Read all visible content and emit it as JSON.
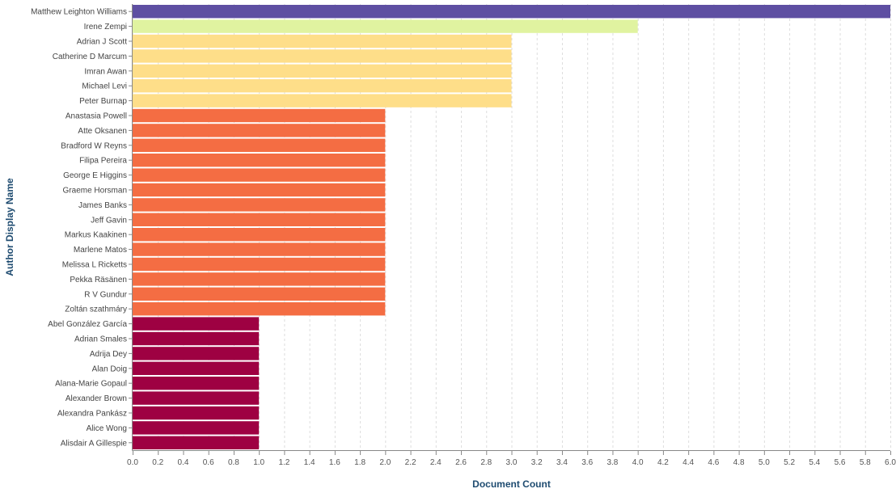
{
  "chart_data": {
    "type": "bar",
    "orientation": "horizontal",
    "xlabel": "Document Count",
    "ylabel": "Author Display Name",
    "xlim": [
      0,
      6
    ],
    "x_ticks": [
      "0.0",
      "0.2",
      "0.4",
      "0.6",
      "0.8",
      "1.0",
      "1.2",
      "1.4",
      "1.6",
      "1.8",
      "2.0",
      "2.2",
      "2.4",
      "2.6",
      "2.8",
      "3.0",
      "3.2",
      "3.4",
      "3.6",
      "3.8",
      "4.0",
      "4.2",
      "4.4",
      "4.6",
      "4.8",
      "5.0",
      "5.2",
      "5.4",
      "5.6",
      "5.8",
      "6.0"
    ],
    "grid": true,
    "categories": [
      "Matthew Leighton Williams",
      "Irene Zempi",
      "Adrian J Scott",
      "Catherine D Marcum",
      "Imran Awan",
      "Michael Levi",
      "Peter Burnap",
      "Anastasia Powell",
      "Atte Oksanen",
      "Bradford W Reyns",
      "Filipa Pereira",
      "George E Higgins",
      "Graeme Horsman",
      "James Banks",
      "Jeff Gavin",
      "Markus Kaakinen",
      "Marlene Matos",
      "Melissa L Ricketts",
      "Pekka Räsänen",
      "R V Gundur",
      "Zoltán szathmáry",
      "Abel González García",
      "Adrian Smales",
      "Adrija Dey",
      "Alan Doig",
      "Alana-Marie Gopaul",
      "Alexander Brown",
      "Alexandra Pankász",
      "Alice Wong",
      "Alisdair A Gillespie"
    ],
    "values": [
      6,
      4,
      3,
      3,
      3,
      3,
      3,
      2,
      2,
      2,
      2,
      2,
      2,
      2,
      2,
      2,
      2,
      2,
      2,
      2,
      2,
      1,
      1,
      1,
      1,
      1,
      1,
      1,
      1,
      1
    ],
    "color_scale": {
      "6": "#5e4fa2",
      "4": "#e0f3a0",
      "3": "#fede89",
      "2": "#f46d43",
      "1": "#9e0142"
    }
  }
}
